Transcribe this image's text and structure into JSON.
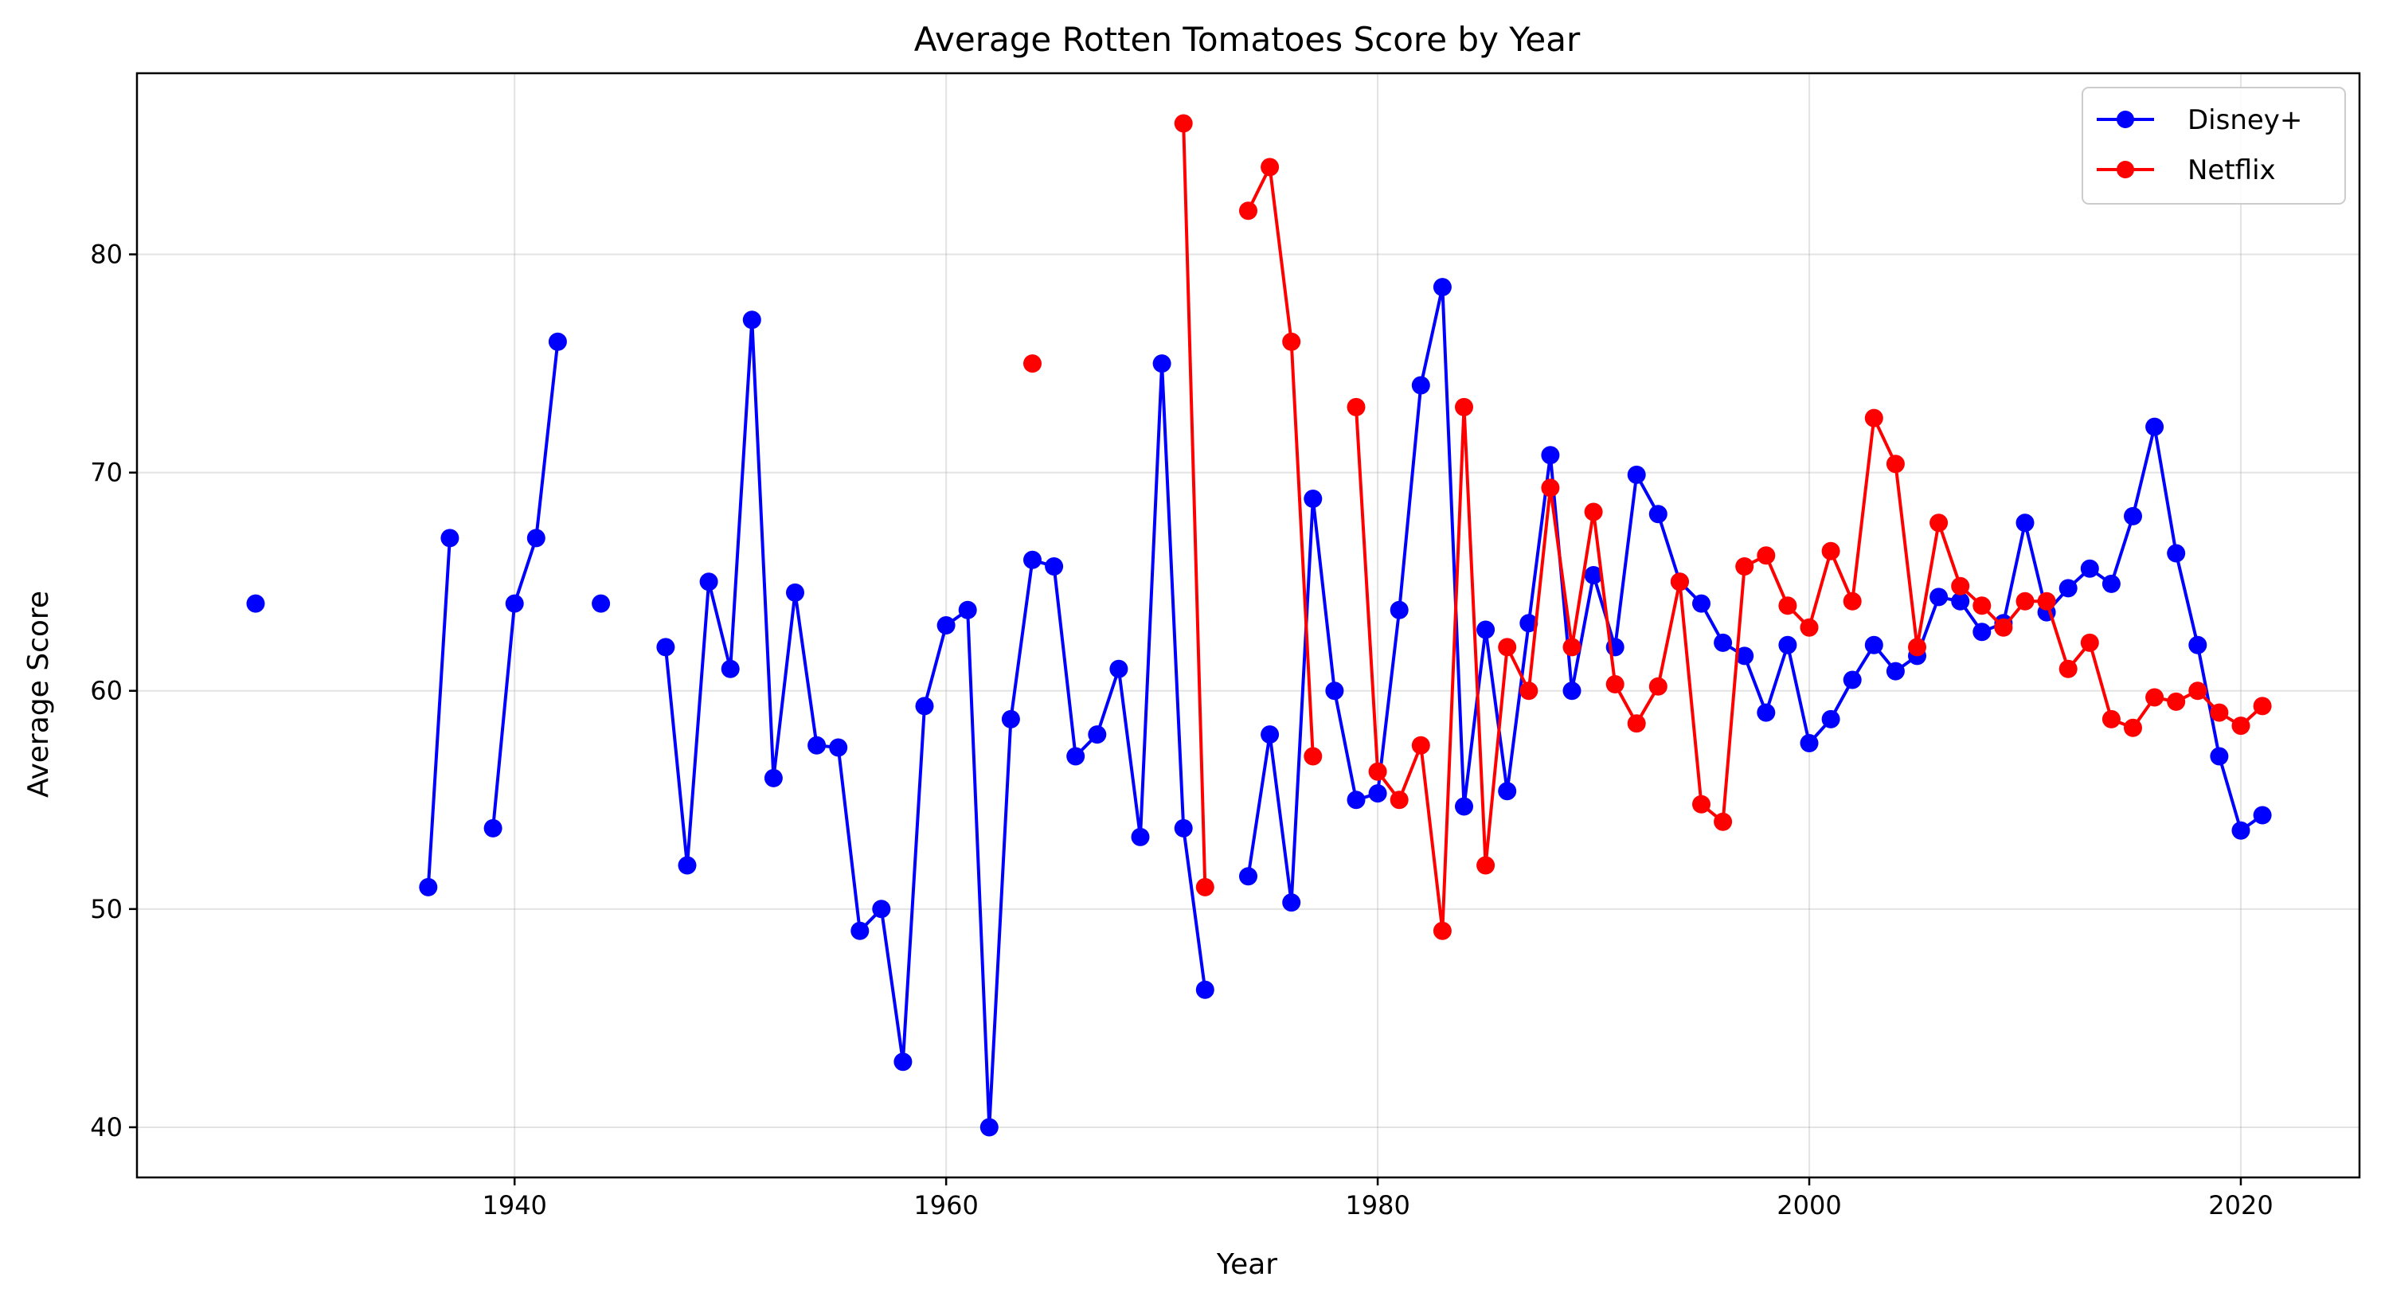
{
  "chart_data": {
    "type": "line",
    "title": "Average Rotten Tomatoes Score by Year",
    "xlabel": "Year",
    "ylabel": "Average Score",
    "xlim": [
      1922.5,
      2025.5
    ],
    "ylim": [
      37.7,
      88.3
    ],
    "xticks": [
      1940,
      1960,
      1980,
      2000,
      2020
    ],
    "yticks": [
      40,
      50,
      60,
      70,
      80
    ],
    "grid": true,
    "legend_position": "top-right",
    "series": [
      {
        "name": "Disney+",
        "color": "#0000ff",
        "points": [
          [
            1928,
            64
          ],
          [
            1936,
            51
          ],
          [
            1937,
            67
          ],
          [
            1939,
            53.7
          ],
          [
            1940,
            64
          ],
          [
            1941,
            67
          ],
          [
            1942,
            76
          ],
          [
            1944,
            64
          ],
          [
            1947,
            62
          ],
          [
            1948,
            52
          ],
          [
            1949,
            65
          ],
          [
            1950,
            61
          ],
          [
            1951,
            77
          ],
          [
            1952,
            56
          ],
          [
            1953,
            64.5
          ],
          [
            1954,
            57.5
          ],
          [
            1955,
            57.4
          ],
          [
            1956,
            49
          ],
          [
            1957,
            50
          ],
          [
            1958,
            43
          ],
          [
            1959,
            59.3
          ],
          [
            1960,
            63
          ],
          [
            1961,
            63.7
          ],
          [
            1962,
            40
          ],
          [
            1963,
            58.7
          ],
          [
            1964,
            66
          ],
          [
            1965,
            65.7
          ],
          [
            1966,
            57
          ],
          [
            1967,
            58
          ],
          [
            1968,
            61
          ],
          [
            1969,
            53.3
          ],
          [
            1970,
            75
          ],
          [
            1971,
            53.7
          ],
          [
            1972,
            46.3
          ],
          [
            1974,
            51.5
          ],
          [
            1975,
            58
          ],
          [
            1976,
            50.3
          ],
          [
            1977,
            68.8
          ],
          [
            1978,
            60
          ],
          [
            1979,
            55
          ],
          [
            1980,
            55.3
          ],
          [
            1981,
            63.7
          ],
          [
            1982,
            74
          ],
          [
            1983,
            78.5
          ],
          [
            1984,
            54.7
          ],
          [
            1985,
            62.8
          ],
          [
            1986,
            55.4
          ],
          [
            1987,
            63.1
          ],
          [
            1988,
            70.8
          ],
          [
            1989,
            60
          ],
          [
            1990,
            65.3
          ],
          [
            1991,
            62
          ],
          [
            1992,
            69.9
          ],
          [
            1993,
            68.1
          ],
          [
            1994,
            65
          ],
          [
            1995,
            64
          ],
          [
            1996,
            62.2
          ],
          [
            1997,
            61.6
          ],
          [
            1998,
            59
          ],
          [
            1999,
            62.1
          ],
          [
            2000,
            57.6
          ],
          [
            2001,
            58.7
          ],
          [
            2002,
            60.5
          ],
          [
            2003,
            62.1
          ],
          [
            2004,
            60.9
          ],
          [
            2005,
            61.6
          ],
          [
            2006,
            64.3
          ],
          [
            2007,
            64.1
          ],
          [
            2008,
            62.7
          ],
          [
            2009,
            63.1
          ],
          [
            2010,
            67.7
          ],
          [
            2011,
            63.6
          ],
          [
            2012,
            64.7
          ],
          [
            2013,
            65.6
          ],
          [
            2014,
            64.9
          ],
          [
            2015,
            68
          ],
          [
            2016,
            72.1
          ],
          [
            2017,
            66.3
          ],
          [
            2018,
            62.1
          ],
          [
            2019,
            57
          ],
          [
            2020,
            53.6
          ],
          [
            2021,
            54.3
          ]
        ]
      },
      {
        "name": "Netflix",
        "color": "#ff0000",
        "points": [
          [
            1964,
            75
          ],
          [
            1971,
            86
          ],
          [
            1972,
            51
          ],
          [
            1974,
            82
          ],
          [
            1975,
            84
          ],
          [
            1976,
            76
          ],
          [
            1977,
            57
          ],
          [
            1979,
            73
          ],
          [
            1980,
            56.3
          ],
          [
            1981,
            55
          ],
          [
            1982,
            57.5
          ],
          [
            1983,
            49
          ],
          [
            1984,
            73
          ],
          [
            1985,
            52
          ],
          [
            1986,
            62
          ],
          [
            1987,
            60
          ],
          [
            1988,
            69.3
          ],
          [
            1989,
            62
          ],
          [
            1990,
            68.2
          ],
          [
            1991,
            60.3
          ],
          [
            1992,
            58.5
          ],
          [
            1993,
            60.2
          ],
          [
            1994,
            65
          ],
          [
            1995,
            54.8
          ],
          [
            1996,
            54
          ],
          [
            1997,
            65.7
          ],
          [
            1998,
            66.2
          ],
          [
            1999,
            63.9
          ],
          [
            2000,
            62.9
          ],
          [
            2001,
            66.4
          ],
          [
            2002,
            64.1
          ],
          [
            2003,
            72.5
          ],
          [
            2004,
            70.4
          ],
          [
            2005,
            62
          ],
          [
            2006,
            67.7
          ],
          [
            2007,
            64.8
          ],
          [
            2008,
            63.9
          ],
          [
            2009,
            62.9
          ],
          [
            2010,
            64.1
          ],
          [
            2011,
            64.1
          ],
          [
            2012,
            61
          ],
          [
            2013,
            62.2
          ],
          [
            2014,
            58.7
          ],
          [
            2015,
            58.3
          ],
          [
            2016,
            59.7
          ],
          [
            2017,
            59.5
          ],
          [
            2018,
            60
          ],
          [
            2019,
            59
          ],
          [
            2020,
            58.4
          ],
          [
            2021,
            59.3
          ]
        ]
      }
    ]
  }
}
